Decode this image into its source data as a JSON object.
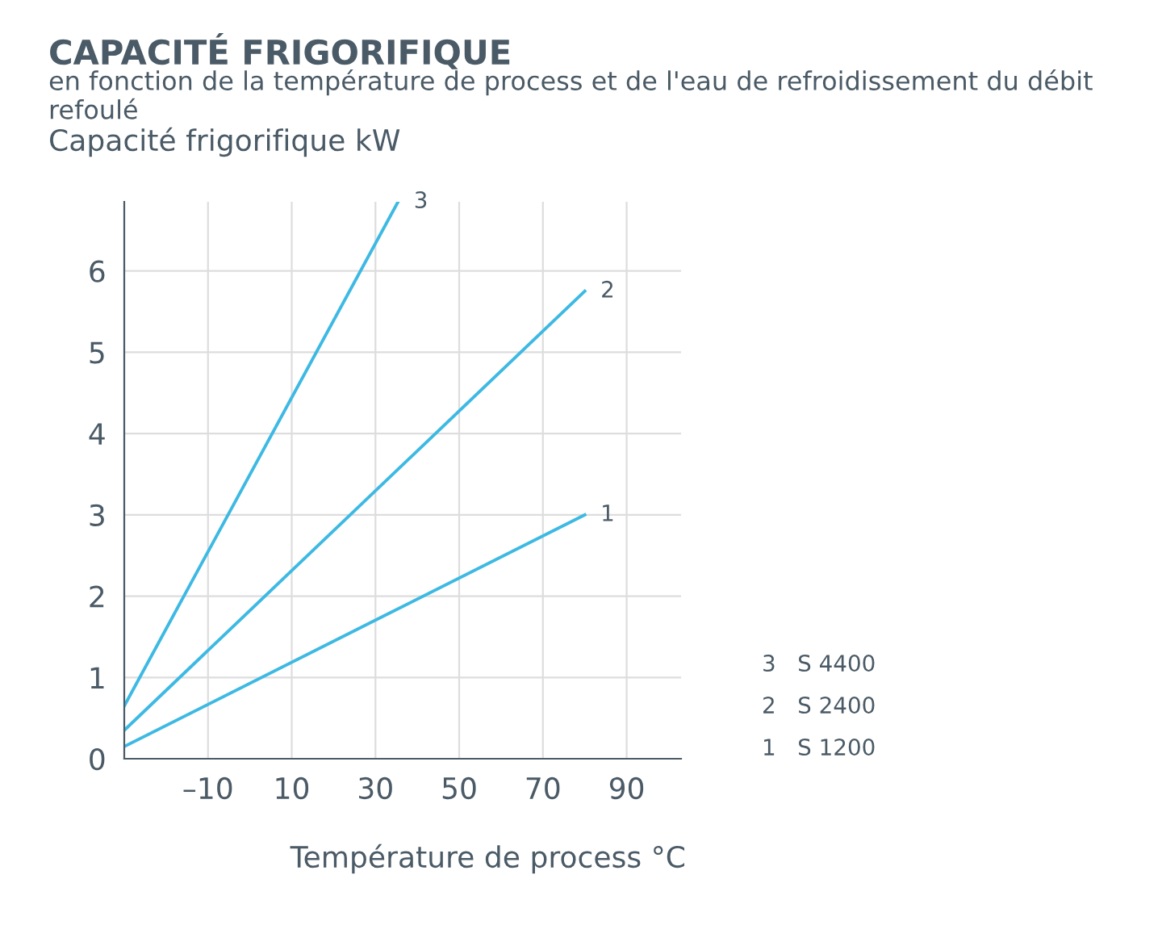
{
  "chart_data": {
    "type": "line",
    "title": "CAPACITÉ FRIGORIFIQUE",
    "subtitle": "en fonction de la température de process et de l'eau de refroidissement du débit refoulé",
    "ylabel": "Capacité frigorifique kW",
    "xlabel": "Température de process °C",
    "series": [
      {
        "name": "1",
        "color": "#3db9e3",
        "x": [
          -30,
          80
        ],
        "values": [
          0.15,
          3.0
        ]
      },
      {
        "name": "2",
        "color": "#3db9e3",
        "x": [
          -30,
          80
        ],
        "values": [
          0.35,
          5.75
        ]
      },
      {
        "name": "3",
        "color": "#3db9e3",
        "x": [
          -30,
          35.4
        ],
        "values": [
          0.65,
          6.85
        ]
      }
    ],
    "annotations": [
      "3   S 4400",
      "2   S 2400",
      "1   S 1200"
    ],
    "xlim": [
      -30,
      103
    ],
    "ylim": [
      0,
      6.85
    ],
    "xticks": [
      {
        "value": -10,
        "label": "–10"
      },
      10,
      30,
      50,
      70,
      90
    ],
    "yticks": [
      0,
      1,
      2,
      3,
      4,
      5,
      6
    ],
    "grid": true,
    "marker": "none",
    "line_style": "solid"
  }
}
